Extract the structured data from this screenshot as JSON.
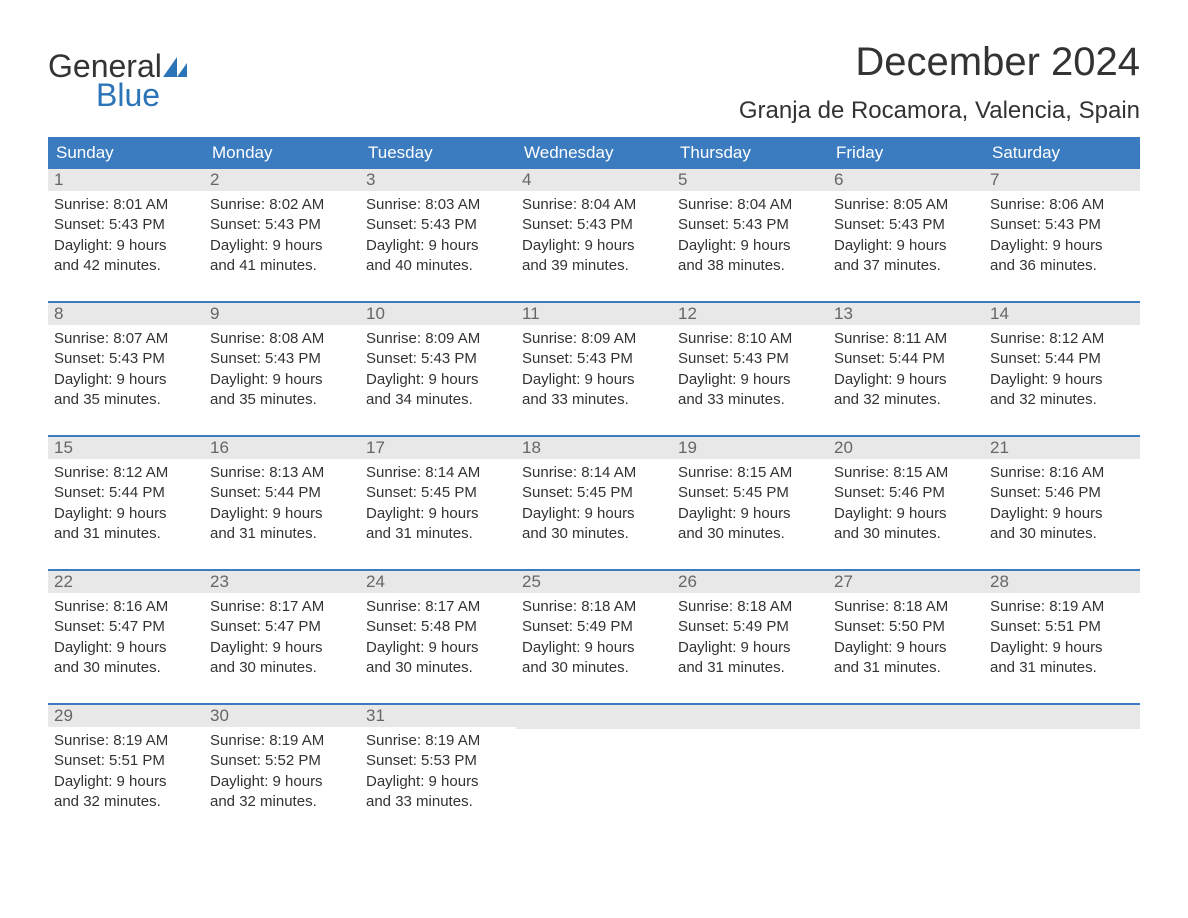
{
  "logo": {
    "text_general": "General",
    "text_blue": "Blue",
    "triangle_color": "#2b74b8"
  },
  "title": "December 2024",
  "location": "Granja de Rocamora, Valencia, Spain",
  "colors": {
    "header_bg": "#3b7bbf",
    "header_text": "#ffffff",
    "day_number_bg": "#e8e8e8",
    "day_number_text": "#666666",
    "body_text": "#333333",
    "accent": "#2b74b8"
  },
  "day_headers": [
    "Sunday",
    "Monday",
    "Tuesday",
    "Wednesday",
    "Thursday",
    "Friday",
    "Saturday"
  ],
  "weeks": [
    [
      {
        "day": "1",
        "sunrise": "Sunrise: 8:01 AM",
        "sunset": "Sunset: 5:43 PM",
        "daylight1": "Daylight: 9 hours",
        "daylight2": "and 42 minutes."
      },
      {
        "day": "2",
        "sunrise": "Sunrise: 8:02 AM",
        "sunset": "Sunset: 5:43 PM",
        "daylight1": "Daylight: 9 hours",
        "daylight2": "and 41 minutes."
      },
      {
        "day": "3",
        "sunrise": "Sunrise: 8:03 AM",
        "sunset": "Sunset: 5:43 PM",
        "daylight1": "Daylight: 9 hours",
        "daylight2": "and 40 minutes."
      },
      {
        "day": "4",
        "sunrise": "Sunrise: 8:04 AM",
        "sunset": "Sunset: 5:43 PM",
        "daylight1": "Daylight: 9 hours",
        "daylight2": "and 39 minutes."
      },
      {
        "day": "5",
        "sunrise": "Sunrise: 8:04 AM",
        "sunset": "Sunset: 5:43 PM",
        "daylight1": "Daylight: 9 hours",
        "daylight2": "and 38 minutes."
      },
      {
        "day": "6",
        "sunrise": "Sunrise: 8:05 AM",
        "sunset": "Sunset: 5:43 PM",
        "daylight1": "Daylight: 9 hours",
        "daylight2": "and 37 minutes."
      },
      {
        "day": "7",
        "sunrise": "Sunrise: 8:06 AM",
        "sunset": "Sunset: 5:43 PM",
        "daylight1": "Daylight: 9 hours",
        "daylight2": "and 36 minutes."
      }
    ],
    [
      {
        "day": "8",
        "sunrise": "Sunrise: 8:07 AM",
        "sunset": "Sunset: 5:43 PM",
        "daylight1": "Daylight: 9 hours",
        "daylight2": "and 35 minutes."
      },
      {
        "day": "9",
        "sunrise": "Sunrise: 8:08 AM",
        "sunset": "Sunset: 5:43 PM",
        "daylight1": "Daylight: 9 hours",
        "daylight2": "and 35 minutes."
      },
      {
        "day": "10",
        "sunrise": "Sunrise: 8:09 AM",
        "sunset": "Sunset: 5:43 PM",
        "daylight1": "Daylight: 9 hours",
        "daylight2": "and 34 minutes."
      },
      {
        "day": "11",
        "sunrise": "Sunrise: 8:09 AM",
        "sunset": "Sunset: 5:43 PM",
        "daylight1": "Daylight: 9 hours",
        "daylight2": "and 33 minutes."
      },
      {
        "day": "12",
        "sunrise": "Sunrise: 8:10 AM",
        "sunset": "Sunset: 5:43 PM",
        "daylight1": "Daylight: 9 hours",
        "daylight2": "and 33 minutes."
      },
      {
        "day": "13",
        "sunrise": "Sunrise: 8:11 AM",
        "sunset": "Sunset: 5:44 PM",
        "daylight1": "Daylight: 9 hours",
        "daylight2": "and 32 minutes."
      },
      {
        "day": "14",
        "sunrise": "Sunrise: 8:12 AM",
        "sunset": "Sunset: 5:44 PM",
        "daylight1": "Daylight: 9 hours",
        "daylight2": "and 32 minutes."
      }
    ],
    [
      {
        "day": "15",
        "sunrise": "Sunrise: 8:12 AM",
        "sunset": "Sunset: 5:44 PM",
        "daylight1": "Daylight: 9 hours",
        "daylight2": "and 31 minutes."
      },
      {
        "day": "16",
        "sunrise": "Sunrise: 8:13 AM",
        "sunset": "Sunset: 5:44 PM",
        "daylight1": "Daylight: 9 hours",
        "daylight2": "and 31 minutes."
      },
      {
        "day": "17",
        "sunrise": "Sunrise: 8:14 AM",
        "sunset": "Sunset: 5:45 PM",
        "daylight1": "Daylight: 9 hours",
        "daylight2": "and 31 minutes."
      },
      {
        "day": "18",
        "sunrise": "Sunrise: 8:14 AM",
        "sunset": "Sunset: 5:45 PM",
        "daylight1": "Daylight: 9 hours",
        "daylight2": "and 30 minutes."
      },
      {
        "day": "19",
        "sunrise": "Sunrise: 8:15 AM",
        "sunset": "Sunset: 5:45 PM",
        "daylight1": "Daylight: 9 hours",
        "daylight2": "and 30 minutes."
      },
      {
        "day": "20",
        "sunrise": "Sunrise: 8:15 AM",
        "sunset": "Sunset: 5:46 PM",
        "daylight1": "Daylight: 9 hours",
        "daylight2": "and 30 minutes."
      },
      {
        "day": "21",
        "sunrise": "Sunrise: 8:16 AM",
        "sunset": "Sunset: 5:46 PM",
        "daylight1": "Daylight: 9 hours",
        "daylight2": "and 30 minutes."
      }
    ],
    [
      {
        "day": "22",
        "sunrise": "Sunrise: 8:16 AM",
        "sunset": "Sunset: 5:47 PM",
        "daylight1": "Daylight: 9 hours",
        "daylight2": "and 30 minutes."
      },
      {
        "day": "23",
        "sunrise": "Sunrise: 8:17 AM",
        "sunset": "Sunset: 5:47 PM",
        "daylight1": "Daylight: 9 hours",
        "daylight2": "and 30 minutes."
      },
      {
        "day": "24",
        "sunrise": "Sunrise: 8:17 AM",
        "sunset": "Sunset: 5:48 PM",
        "daylight1": "Daylight: 9 hours",
        "daylight2": "and 30 minutes."
      },
      {
        "day": "25",
        "sunrise": "Sunrise: 8:18 AM",
        "sunset": "Sunset: 5:49 PM",
        "daylight1": "Daylight: 9 hours",
        "daylight2": "and 30 minutes."
      },
      {
        "day": "26",
        "sunrise": "Sunrise: 8:18 AM",
        "sunset": "Sunset: 5:49 PM",
        "daylight1": "Daylight: 9 hours",
        "daylight2": "and 31 minutes."
      },
      {
        "day": "27",
        "sunrise": "Sunrise: 8:18 AM",
        "sunset": "Sunset: 5:50 PM",
        "daylight1": "Daylight: 9 hours",
        "daylight2": "and 31 minutes."
      },
      {
        "day": "28",
        "sunrise": "Sunrise: 8:19 AM",
        "sunset": "Sunset: 5:51 PM",
        "daylight1": "Daylight: 9 hours",
        "daylight2": "and 31 minutes."
      }
    ],
    [
      {
        "day": "29",
        "sunrise": "Sunrise: 8:19 AM",
        "sunset": "Sunset: 5:51 PM",
        "daylight1": "Daylight: 9 hours",
        "daylight2": "and 32 minutes."
      },
      {
        "day": "30",
        "sunrise": "Sunrise: 8:19 AM",
        "sunset": "Sunset: 5:52 PM",
        "daylight1": "Daylight: 9 hours",
        "daylight2": "and 32 minutes."
      },
      {
        "day": "31",
        "sunrise": "Sunrise: 8:19 AM",
        "sunset": "Sunset: 5:53 PM",
        "daylight1": "Daylight: 9 hours",
        "daylight2": "and 33 minutes."
      },
      {
        "empty": true
      },
      {
        "empty": true
      },
      {
        "empty": true
      },
      {
        "empty": true
      }
    ]
  ]
}
